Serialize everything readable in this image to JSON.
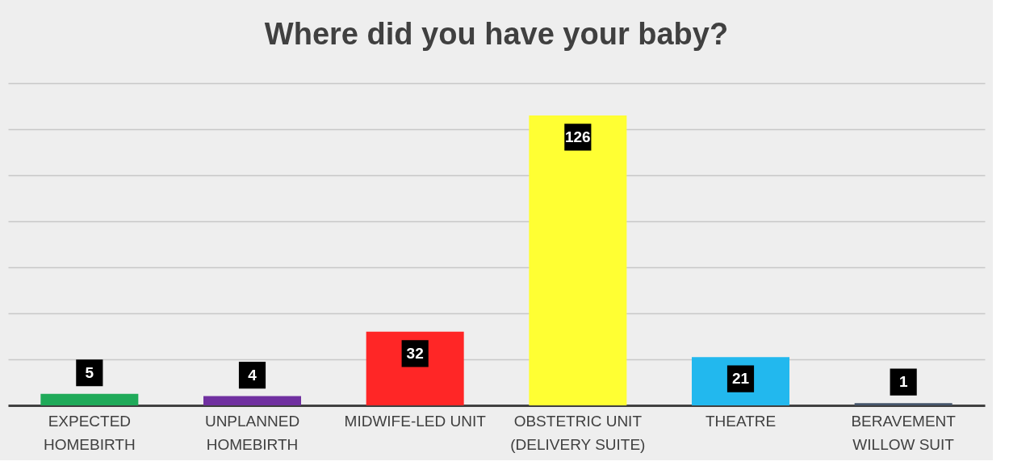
{
  "chart_data": {
    "type": "bar",
    "title": "Where did you have your baby?",
    "categories": [
      "EXPECTED\nHOMEBIRTH",
      "UNPLANNED\nHOMEBIRTH",
      "MIDWIFE-LED UNIT",
      "OBSTETRIC UNIT\n(DELIVERY SUITE)",
      "THEATRE",
      "BERAVEMENT\nWILLOW SUIT"
    ],
    "values": [
      5,
      4,
      32,
      126,
      21,
      1
    ],
    "colors": [
      "#1faa59",
      "#7030a0",
      "#ff2626",
      "#ffff33",
      "#22b8ee",
      "#44546a"
    ],
    "ylim": [
      0,
      140
    ],
    "yticks": [
      0,
      20,
      40,
      60,
      80,
      100,
      120,
      140
    ],
    "tick_labels": "x",
    "grid": "y",
    "data_labels": true
  }
}
